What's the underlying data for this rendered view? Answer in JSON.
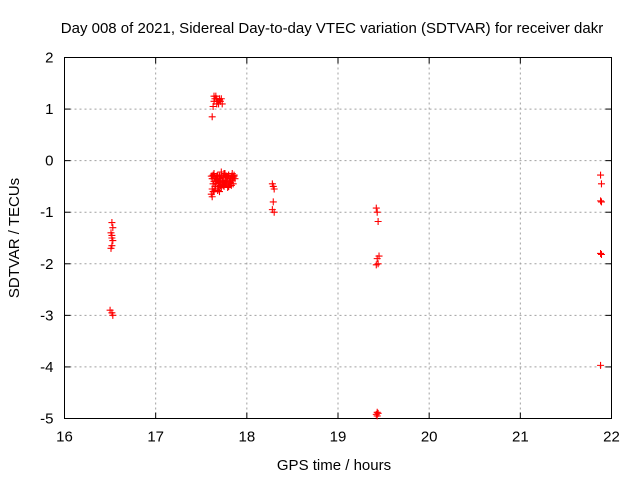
{
  "chart_data": {
    "type": "scatter",
    "title": "Day 008 of 2021, Sidereal Day-to-day VTEC variation (SDTVAR) for receiver dakr",
    "xlabel": "GPS time / hours",
    "ylabel": "SDTVAR / TECUs",
    "xlim": [
      16,
      22
    ],
    "ylim": [
      -5,
      2
    ],
    "x_ticks": [
      16,
      17,
      18,
      19,
      20,
      21,
      22
    ],
    "y_ticks": [
      2,
      1,
      0,
      -1,
      -2,
      -3,
      -4,
      -5
    ],
    "x_tick_labels": [
      "16",
      "17",
      "18",
      "19",
      "20",
      "21",
      "22"
    ],
    "y_tick_labels": [
      "2",
      "1",
      "0",
      "-1",
      "-2",
      "-3",
      "-4",
      "-5"
    ],
    "grid": true,
    "marker": "+",
    "color": "#ff0000",
    "series": [
      {
        "name": "SDTVAR",
        "x": [
          16.52,
          16.53,
          16.52,
          16.51,
          16.53,
          16.52,
          16.51,
          16.52,
          16.5,
          16.52,
          16.53,
          17.62,
          17.63,
          17.64,
          17.65,
          17.66,
          17.67,
          17.68,
          17.69,
          17.7,
          17.71,
          17.72,
          17.73,
          17.64,
          17.67,
          17.7,
          17.61,
          17.62,
          17.63,
          17.64,
          17.65,
          17.66,
          17.67,
          17.68,
          17.69,
          17.7,
          17.71,
          17.72,
          17.73,
          17.74,
          17.75,
          17.76,
          17.77,
          17.78,
          17.79,
          17.8,
          17.81,
          17.82,
          17.83,
          17.84,
          17.85,
          17.86,
          17.87,
          17.63,
          17.65,
          17.67,
          17.69,
          17.71,
          17.73,
          17.75,
          17.77,
          17.79,
          17.81,
          17.83,
          17.85,
          17.62,
          17.64,
          17.66,
          17.68,
          17.7,
          17.72,
          17.74,
          17.76,
          17.78,
          17.8,
          17.82,
          17.84,
          17.86,
          17.62,
          17.64,
          17.66,
          17.68,
          17.7,
          17.72,
          17.74,
          17.76,
          17.78,
          17.8,
          17.82,
          17.84,
          17.61,
          17.62,
          17.63,
          17.65,
          17.7,
          17.75,
          17.8,
          18.28,
          18.29,
          18.3,
          18.29,
          18.28,
          18.3,
          19.42,
          19.43,
          19.44,
          19.45,
          19.43,
          19.44,
          19.42,
          19.43,
          19.44,
          19.42,
          19.43,
          21.88,
          21.89,
          21.88,
          21.89,
          21.88,
          21.89,
          21.88
        ],
        "y": [
          -1.2,
          -1.3,
          -1.45,
          -1.4,
          -1.55,
          -1.65,
          -1.7,
          -1.5,
          -2.9,
          -2.95,
          -3.0,
          0.85,
          1.05,
          1.15,
          1.2,
          1.25,
          1.2,
          1.15,
          1.1,
          1.2,
          1.15,
          1.2,
          1.1,
          1.25,
          1.1,
          1.18,
          -0.3,
          -0.35,
          -0.28,
          -0.4,
          -0.32,
          -0.45,
          -0.3,
          -0.38,
          -0.42,
          -0.3,
          -0.35,
          -0.28,
          -0.4,
          -0.33,
          -0.25,
          -0.45,
          -0.3,
          -0.38,
          -0.32,
          -0.28,
          -0.42,
          -0.35,
          -0.3,
          -0.38,
          -0.32,
          -0.28,
          -0.35,
          -0.45,
          -0.5,
          -0.4,
          -0.55,
          -0.48,
          -0.42,
          -0.5,
          -0.45,
          -0.52,
          -0.4,
          -0.48,
          -0.45,
          -0.3,
          -0.25,
          -0.35,
          -0.28,
          -0.32,
          -0.22,
          -0.38,
          -0.25,
          -0.3,
          -0.28,
          -0.35,
          -0.25,
          -0.3,
          -0.55,
          -0.6,
          -0.5,
          -0.58,
          -0.45,
          -0.52,
          -0.48,
          -0.4,
          -0.45,
          -0.5,
          -0.42,
          -0.38,
          -0.65,
          -0.7,
          -0.6,
          -0.55,
          -0.6,
          -0.45,
          -0.5,
          -0.45,
          -0.5,
          -0.55,
          -0.8,
          -0.95,
          -1.0,
          -0.92,
          -1.0,
          -1.18,
          -1.85,
          -1.9,
          -2.0,
          -2.02,
          -4.88,
          -4.9,
          -4.92,
          -4.95,
          -0.28,
          -0.45,
          -0.78,
          -0.8,
          -1.8,
          -1.82,
          -3.97
        ]
      }
    ]
  }
}
